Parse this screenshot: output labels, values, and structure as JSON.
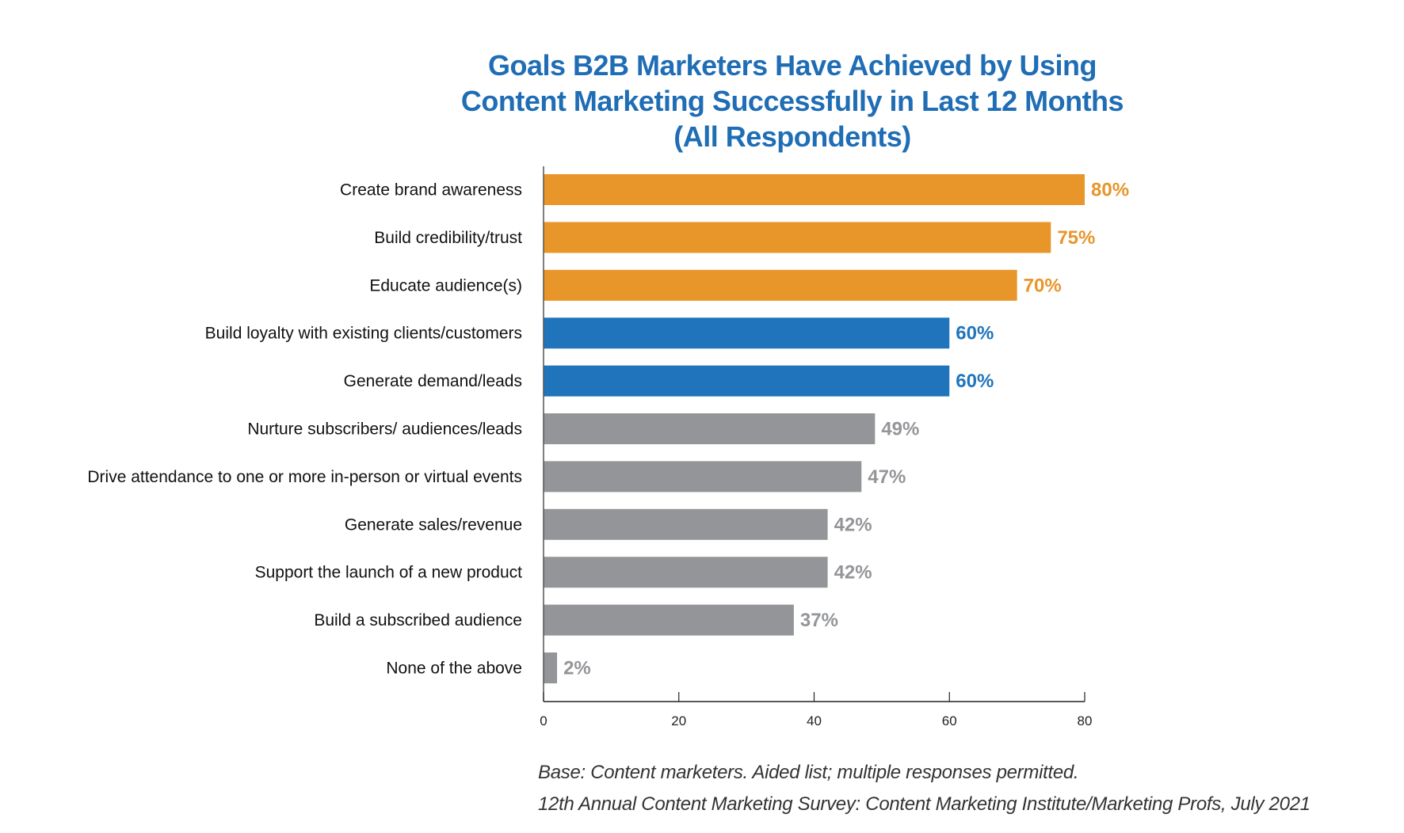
{
  "chart_data": {
    "type": "bar",
    "orientation": "horizontal",
    "title_lines": [
      "Goals B2B Marketers Have Achieved by Using",
      "Content Marketing Successfully in Last 12 Months",
      "(All Respondents)"
    ],
    "categories": [
      "Create brand awareness",
      "Build credibility/trust",
      "Educate audience(s)",
      "Build loyalty with existing clients/customers",
      "Generate demand/leads",
      "Nurture subscribers/ audiences/leads",
      "Drive attendance to one or more in-person or virtual events",
      "Generate sales/revenue",
      "Support the launch of a new product",
      "Build a subscribed audience",
      "None of the above"
    ],
    "values": [
      80,
      75,
      70,
      60,
      60,
      49,
      47,
      42,
      42,
      37,
      2
    ],
    "data_labels": [
      "80%",
      "75%",
      "70%",
      "60%",
      "60%",
      "49%",
      "47%",
      "42%",
      "42%",
      "37%",
      "2%"
    ],
    "bar_colors": [
      "#e8952a",
      "#e8952a",
      "#e8952a",
      "#1f74bc",
      "#1f74bc",
      "#939598",
      "#939598",
      "#939598",
      "#939598",
      "#939598",
      "#939598"
    ],
    "xlim": [
      0,
      80
    ],
    "xticks": [
      "0",
      "20",
      "40",
      "60",
      "80"
    ],
    "grid": false,
    "xlabel": "",
    "ylabel": ""
  },
  "footer": {
    "base": "Base: Content marketers. Aided list; multiple responses permitted.",
    "source": "12th Annual Content Marketing Survey: Content Marketing Institute/Marketing Profs, July 2021"
  }
}
